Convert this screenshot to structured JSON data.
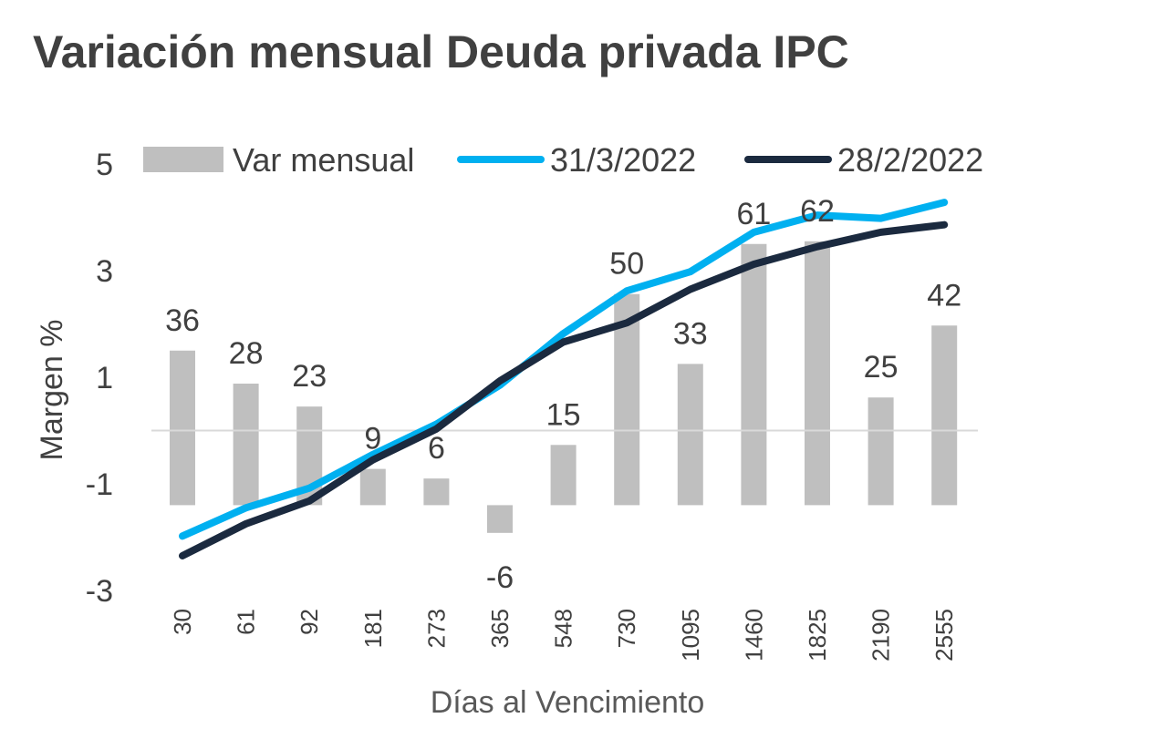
{
  "chart_data": {
    "type": "bar+line",
    "title": "Variación mensual Deuda privada IPC",
    "xlabel": "Días al Vencimiento",
    "ylabel": "Margen %",
    "categories": [
      "30",
      "61",
      "92",
      "181",
      "273",
      "365",
      "548",
      "730",
      "1095",
      "1460",
      "1825",
      "2190",
      "2555"
    ],
    "ylim": [
      -3,
      5
    ],
    "yticks": [
      "5",
      "3",
      "1",
      "-1",
      "-3"
    ],
    "bar_baseline": -1.4,
    "grid": false,
    "legend_position": "top",
    "series": [
      {
        "name": "Var mensual",
        "type": "bar",
        "color": "#bfbfbf",
        "labels": [
          "36",
          "28",
          "23",
          "9",
          "6",
          "-6",
          "15",
          "50",
          "33",
          "61",
          "62",
          "25",
          "42"
        ],
        "values": [
          1.5,
          0.88,
          0.45,
          -0.72,
          -0.9,
          -1.92,
          -0.27,
          2.56,
          1.25,
          3.5,
          3.55,
          0.62,
          1.97
        ]
      },
      {
        "name": "31/3/2022",
        "type": "line",
        "color": "#00b0f0",
        "values": [
          -1.98,
          -1.45,
          -1.08,
          -0.45,
          0.12,
          0.85,
          1.82,
          2.62,
          2.98,
          3.72,
          4.04,
          3.98,
          4.28
        ]
      },
      {
        "name": "28/2/2022",
        "type": "line",
        "color": "#1b2a3f",
        "values": [
          -2.35,
          -1.75,
          -1.32,
          -0.55,
          0.03,
          0.93,
          1.66,
          2.02,
          2.65,
          3.12,
          3.45,
          3.72,
          3.86
        ]
      }
    ]
  }
}
